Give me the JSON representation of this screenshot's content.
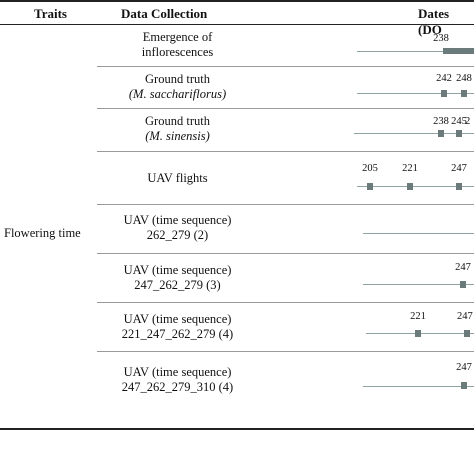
{
  "header": {
    "col_traits": "Traits",
    "col_data": "Data Collection",
    "col_dates": "Dates (DO"
  },
  "trait": "Flowering time",
  "rows": [
    {
      "line1": "Emergence of",
      "line2": "inflorescences",
      "italic2": false,
      "dates": [
        "238"
      ]
    },
    {
      "line1": "Ground truth",
      "line2": "(M. sacchariflorus)",
      "italic2": true,
      "dates": [
        "242",
        "248"
      ]
    },
    {
      "line1": "Ground truth",
      "line2": "(M. sinensis)",
      "italic2": true,
      "dates": [
        "238",
        "245",
        "2"
      ]
    },
    {
      "line1": "UAV flights",
      "line2": "",
      "italic2": false,
      "dates": [
        "205",
        "221",
        "247"
      ]
    },
    {
      "line1": "UAV (time sequence)",
      "line2": "262_279 (2)",
      "italic2": false,
      "dates": []
    },
    {
      "line1": "UAV (time sequence)",
      "line2": "247_262_279 (3)",
      "italic2": false,
      "dates": [
        "247"
      ]
    },
    {
      "line1": "UAV (time sequence)",
      "line2": "221_247_262_279 (4)",
      "italic2": false,
      "dates": [
        "221",
        "247"
      ]
    },
    {
      "line1": "UAV (time sequence)",
      "line2": "247_262_279_310 (4)",
      "italic2": false,
      "dates": [
        "247"
      ]
    }
  ],
  "colors": {
    "marker": "#6b7a7a",
    "timeline": "#8fa3a3",
    "rule": "#222222"
  }
}
